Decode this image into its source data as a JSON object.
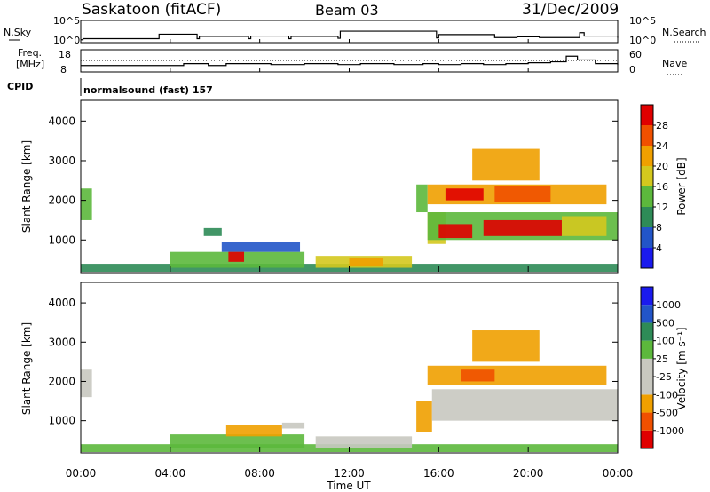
{
  "header": {
    "station": "Saskatoon (fitACF)",
    "beam": "Beam 03",
    "date": "31/Dec/2009"
  },
  "noise_panel": {
    "left_label": "N.Sky",
    "right_label": "N.Search",
    "left_ticks": [
      "10^5",
      "10^0"
    ],
    "right_ticks": [
      "10^5",
      "10^0"
    ]
  },
  "freq_panel": {
    "left_label_1": "Freq.",
    "left_label_2": "[MHz]",
    "right_label": "Nave",
    "left_ticks": [
      "18",
      "8"
    ],
    "right_ticks": [
      "60",
      "0"
    ]
  },
  "cpid": {
    "label": "CPID",
    "value": "normalsound (fast) 157"
  },
  "x_axis": {
    "label": "Time UT",
    "ticks": [
      "00:00",
      "04:00",
      "08:00",
      "12:00",
      "16:00",
      "20:00",
      "00:00"
    ]
  },
  "colors": {
    "power_scale": [
      "#1a1aee",
      "#2255c8",
      "#2e8b57",
      "#5cb83c",
      "#d4c81e",
      "#f0a000",
      "#f05000",
      "#e00000"
    ],
    "velocity_scale": [
      "#e00000",
      "#f05000",
      "#f0a000",
      "#c8c8c0",
      "#c8c8c0",
      "#5cb83c",
      "#2e8b57",
      "#2255c8",
      "#1a1aee"
    ]
  },
  "chart_data": [
    {
      "type": "line",
      "name": "noise",
      "x": [
        0,
        0.1,
        3.4,
        3.5,
        5.2,
        5.3,
        7.5,
        7.6,
        9.3,
        9.4,
        11.5,
        11.6,
        15.9,
        16.0,
        18.5,
        19.5,
        20.5,
        22.3,
        22.5,
        24
      ],
      "y_sky": [
        0.3,
        0.6,
        0.6,
        1.8,
        0.6,
        1.2,
        0.6,
        1.3,
        0.6,
        1.2,
        0.7,
        2.6,
        0.8,
        1.7,
        0.9,
        1.1,
        0.9,
        2.2,
        1.3,
        0.8
      ]
    },
    {
      "type": "line",
      "name": "frequency",
      "x": [
        0,
        0.5,
        1.0,
        4.5,
        4.6,
        5.7,
        6.5,
        8.5,
        10.0,
        11.5,
        12.5,
        14.0,
        15.3,
        16.0,
        17.0,
        18.0,
        19.0,
        20.0,
        21.0,
        21.7,
        22.2,
        23.0,
        24
      ],
      "y": [
        10.5,
        10.5,
        10.5,
        10.5,
        11.5,
        10.5,
        11.5,
        11.0,
        11.5,
        11.0,
        11.5,
        11.0,
        11.5,
        11.0,
        11.5,
        11.0,
        11.5,
        12.0,
        12.5,
        15.5,
        13.5,
        11.5,
        10.8
      ],
      "ylim": [
        8,
        18
      ]
    },
    {
      "type": "heatmap",
      "name": "power",
      "xlim": [
        0,
        24
      ],
      "ylim": [
        200,
        4500
      ],
      "yticks": [
        1000,
        2000,
        3000,
        4000
      ],
      "ylabel": "Slant Range [km]",
      "colorbar_label": "Power [dB]",
      "colorbar_ticks": [
        "4",
        "8",
        "12",
        "16",
        "20",
        "24",
        "28"
      ],
      "regions": [
        {
          "x0": 0.0,
          "x1": 0.5,
          "y0": 1500,
          "y1": 2300,
          "level": 3
        },
        {
          "x0": 0.0,
          "x1": 24,
          "y0": 200,
          "y1": 400,
          "level": 2
        },
        {
          "x0": 4.0,
          "x1": 10.0,
          "y0": 300,
          "y1": 700,
          "level": 3
        },
        {
          "x0": 5.5,
          "x1": 6.3,
          "y0": 1100,
          "y1": 1300,
          "level": 2
        },
        {
          "x0": 6.3,
          "x1": 9.8,
          "y0": 700,
          "y1": 950,
          "level": 1
        },
        {
          "x0": 6.6,
          "x1": 7.3,
          "y0": 450,
          "y1": 700,
          "level": 7
        },
        {
          "x0": 10.5,
          "x1": 14.8,
          "y0": 300,
          "y1": 600,
          "level": 4
        },
        {
          "x0": 12.0,
          "x1": 13.5,
          "y0": 350,
          "y1": 550,
          "level": 5
        },
        {
          "x0": 15.0,
          "x1": 15.5,
          "y0": 1700,
          "y1": 2400,
          "level": 3
        },
        {
          "x0": 15.5,
          "x1": 16.3,
          "y0": 900,
          "y1": 1700,
          "level": 4
        },
        {
          "x0": 15.5,
          "x1": 23.5,
          "y0": 1900,
          "y1": 2400,
          "level": 5
        },
        {
          "x0": 16.3,
          "x1": 18.0,
          "y0": 2000,
          "y1": 2300,
          "level": 7
        },
        {
          "x0": 18.5,
          "x1": 21.0,
          "y0": 1950,
          "y1": 2350,
          "level": 6
        },
        {
          "x0": 15.5,
          "x1": 24.0,
          "y0": 1000,
          "y1": 1700,
          "level": 3
        },
        {
          "x0": 16.0,
          "x1": 17.5,
          "y0": 1050,
          "y1": 1400,
          "level": 7
        },
        {
          "x0": 18.0,
          "x1": 21.5,
          "y0": 1100,
          "y1": 1500,
          "level": 7
        },
        {
          "x0": 21.5,
          "x1": 23.5,
          "y0": 1100,
          "y1": 1600,
          "level": 4
        },
        {
          "x0": 17.5,
          "x1": 20.5,
          "y0": 2500,
          "y1": 3300,
          "level": 5
        }
      ]
    },
    {
      "type": "heatmap",
      "name": "velocity",
      "xlim": [
        0,
        24
      ],
      "ylim": [
        200,
        4500
      ],
      "yticks": [
        1000,
        2000,
        3000,
        4000
      ],
      "ylabel": "Slant Range [km]",
      "colorbar_label": "Velocity [m s⁻¹]",
      "colorbar_ticks": [
        "-1000",
        "-500",
        "-100",
        "-25",
        "25",
        "100",
        "500",
        "1000"
      ],
      "regions": [
        {
          "x0": 0.0,
          "x1": 0.5,
          "y0": 1600,
          "y1": 2300,
          "level": 3
        },
        {
          "x0": 0.0,
          "x1": 24,
          "y0": 200,
          "y1": 400,
          "level": 5
        },
        {
          "x0": 4.0,
          "x1": 10.0,
          "y0": 300,
          "y1": 650,
          "level": 5
        },
        {
          "x0": 6.5,
          "x1": 9.0,
          "y0": 600,
          "y1": 900,
          "level": 2
        },
        {
          "x0": 9.0,
          "x1": 10.0,
          "y0": 800,
          "y1": 950,
          "level": 3
        },
        {
          "x0": 10.5,
          "x1": 14.8,
          "y0": 300,
          "y1": 600,
          "level": 3
        },
        {
          "x0": 15.0,
          "x1": 15.7,
          "y0": 700,
          "y1": 1500,
          "level": 2
        },
        {
          "x0": 15.7,
          "x1": 24.0,
          "y0": 1000,
          "y1": 1800,
          "level": 3
        },
        {
          "x0": 15.5,
          "x1": 23.5,
          "y0": 1900,
          "y1": 2400,
          "level": 2
        },
        {
          "x0": 17.5,
          "x1": 20.5,
          "y0": 2500,
          "y1": 3300,
          "level": 2
        },
        {
          "x0": 17.0,
          "x1": 18.5,
          "y0": 2000,
          "y1": 2300,
          "level": 1
        }
      ]
    }
  ]
}
